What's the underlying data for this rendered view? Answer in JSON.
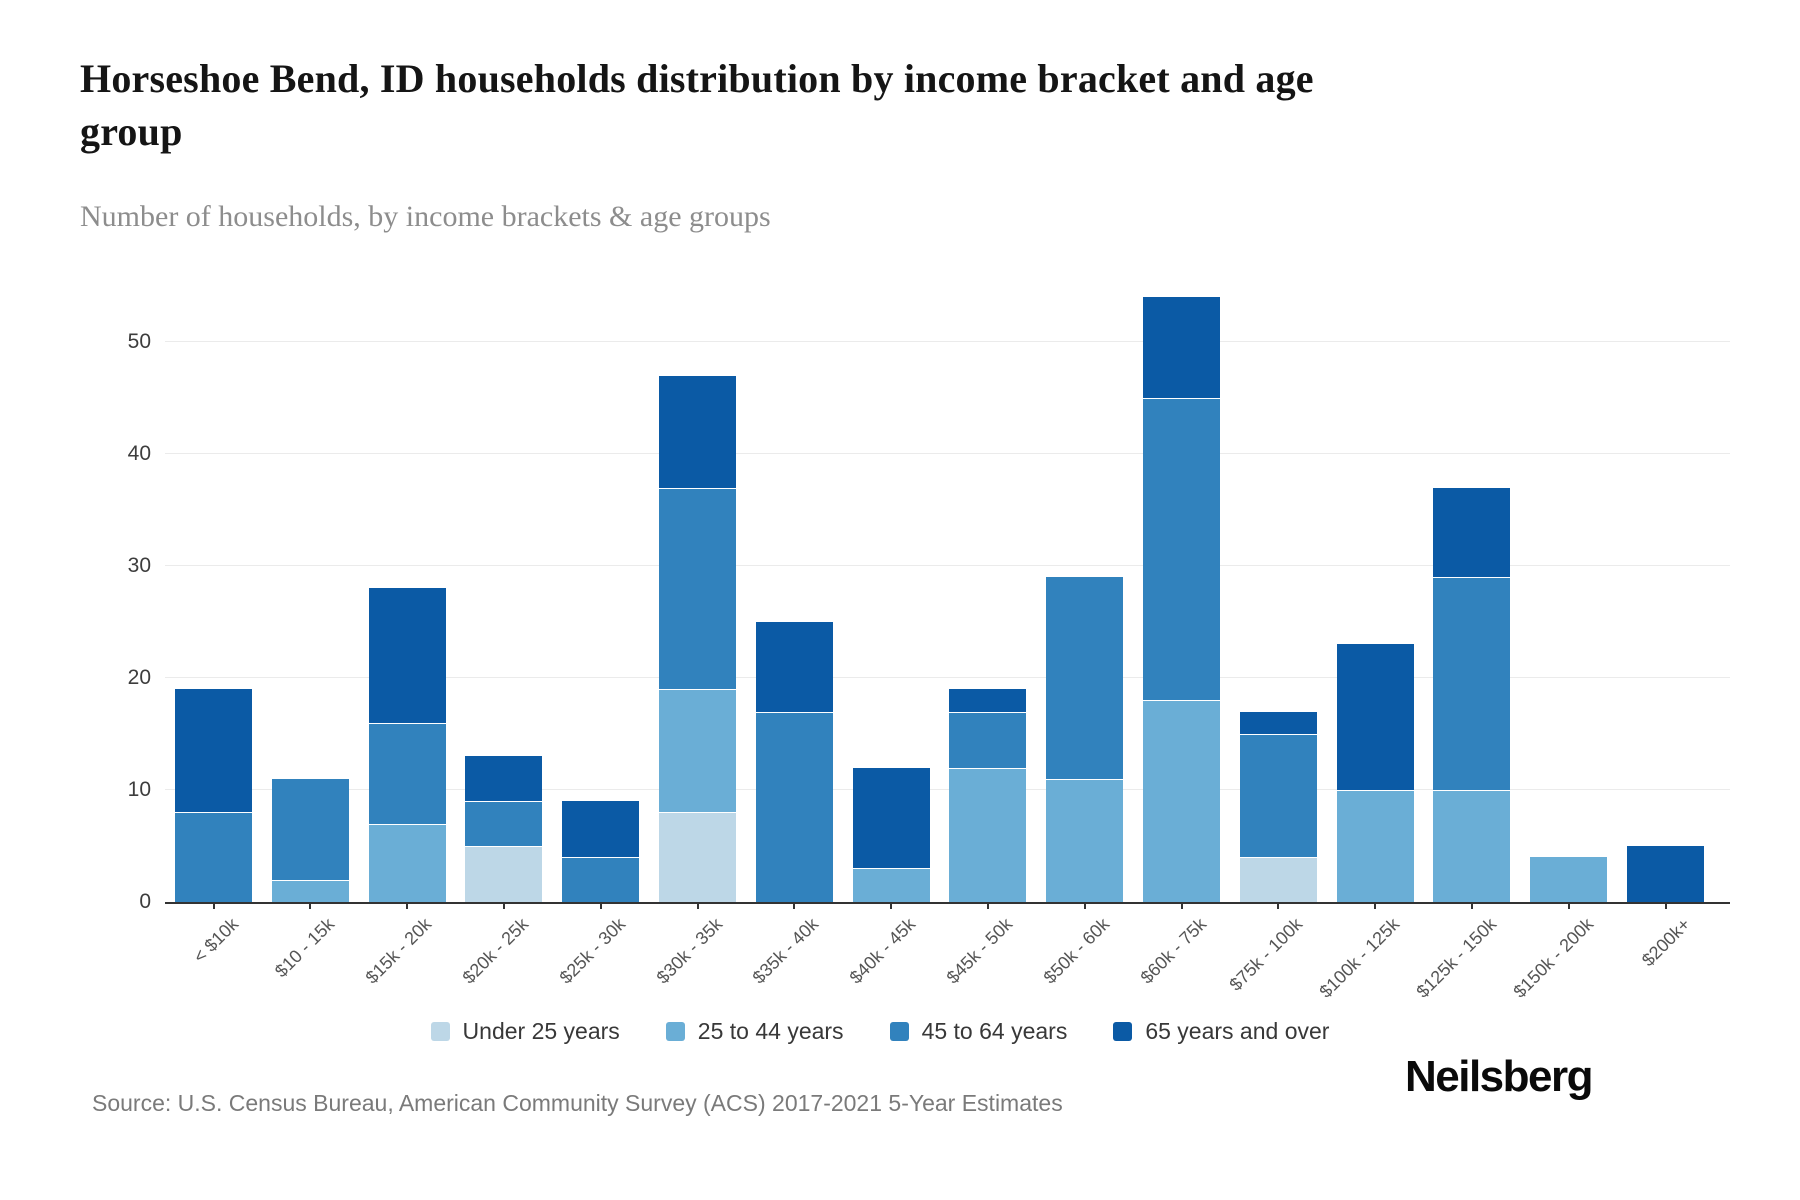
{
  "header": {
    "title": "Horseshoe Bend, ID households distribution by income bracket and age group",
    "subtitle": "Number of households, by income brackets & age groups"
  },
  "chart_data": {
    "type": "bar",
    "stacked": true,
    "title": "Horseshoe Bend, ID households distribution by income bracket and age group",
    "subtitle": "Number of households, by income brackets & age groups",
    "xlabel": "",
    "ylabel": "Number of households",
    "ylim": [
      0,
      54.6
    ],
    "yticks": [
      0,
      10,
      20,
      30,
      40,
      50
    ],
    "grid": true,
    "legend_position": "bottom",
    "categories": [
      "< $10k",
      "$10 - 15k",
      "$15k - 20k",
      "$20k - 25k",
      "$25k - 30k",
      "$30k - 35k",
      "$35k - 40k",
      "$40k - 45k",
      "$45k - 50k",
      "$50k - 60k",
      "$60k - 75k",
      "$75k - 100k",
      "$100k - 125k",
      "$125k - 150k",
      "$150k - 200k",
      "$200k+"
    ],
    "series": [
      {
        "name": "Under 25 years",
        "color": "#bdd7e7",
        "values": [
          0,
          0,
          0,
          5,
          0,
          8,
          0,
          0,
          0,
          0,
          0,
          4,
          0,
          0,
          0,
          0
        ]
      },
      {
        "name": "25 to 44 years",
        "color": "#6aaed6",
        "values": [
          0,
          2,
          7,
          0,
          0,
          11,
          0,
          3,
          12,
          11,
          18,
          0,
          10,
          10,
          4,
          0
        ]
      },
      {
        "name": "45 to 64 years",
        "color": "#3182bd",
        "values": [
          8,
          9,
          9,
          4,
          4,
          18,
          17,
          0,
          5,
          18,
          27,
          11,
          0,
          19,
          0,
          0
        ]
      },
      {
        "name": "65 years and over",
        "color": "#0b5aa5",
        "values": [
          11,
          0,
          12,
          4,
          5,
          10,
          8,
          9,
          2,
          0,
          9,
          2,
          13,
          8,
          0,
          5
        ]
      }
    ],
    "totals": [
      19,
      11,
      28,
      13,
      9,
      47,
      25,
      12,
      19,
      29,
      54,
      17,
      23,
      37,
      4,
      5
    ]
  },
  "footer": {
    "source": "Source: U.S. Census Bureau, American Community Survey (ACS) 2017-2021 5-Year Estimates",
    "logo": "Neilsberg"
  }
}
